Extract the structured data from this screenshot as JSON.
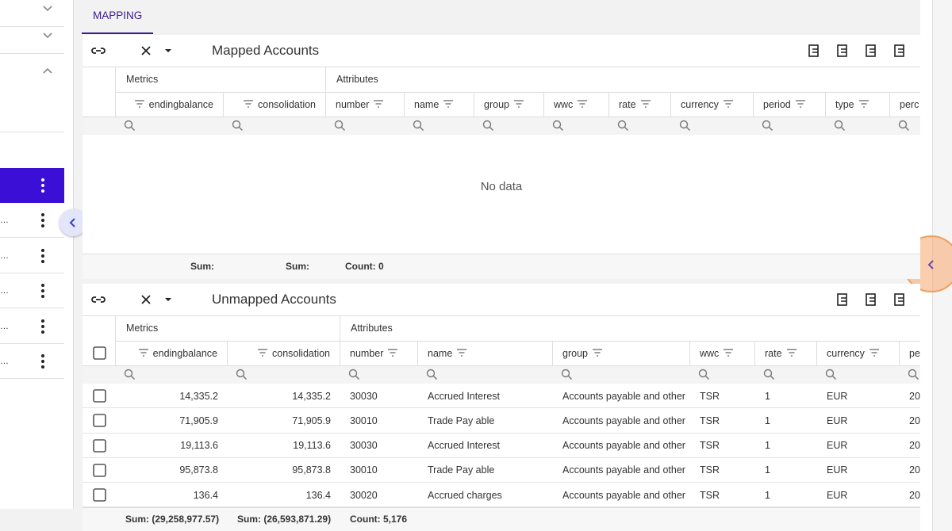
{
  "tab": "MAPPING",
  "sidebar": {
    "items": [
      "…",
      "…",
      "…",
      "…",
      "…"
    ]
  },
  "mapped": {
    "title": "Mapped Accounts",
    "groups": [
      "Metrics",
      "Attributes"
    ],
    "columns": [
      "endingbalance",
      "consolidation",
      "number",
      "name",
      "group",
      "wwc",
      "rate",
      "currency",
      "period",
      "type",
      "perc"
    ],
    "empty": "No data",
    "footer": [
      "Sum:",
      "Sum:",
      "Count: 0"
    ]
  },
  "unmapped": {
    "title": "Unmapped Accounts",
    "groups": [
      "Metrics",
      "Attributes"
    ],
    "columns": [
      "endingbalance",
      "consolidation",
      "number",
      "name",
      "group",
      "wwc",
      "rate",
      "currency",
      "pe"
    ],
    "rows": [
      [
        "14,335.2",
        "14,335.2",
        "30030",
        "Accrued Interest",
        "Accounts payable and other",
        "TSR",
        "1",
        "EUR",
        "20"
      ],
      [
        "71,905.9",
        "71,905.9",
        "30010",
        "Trade Pay able",
        "Accounts payable and other",
        "TSR",
        "1",
        "EUR",
        "20"
      ],
      [
        "19,113.6",
        "19,113.6",
        "30030",
        "Accrued Interest",
        "Accounts payable and other",
        "TSR",
        "1",
        "EUR",
        "20"
      ],
      [
        "95,873.8",
        "95,873.8",
        "30010",
        "Trade Pay able",
        "Accounts payable and other",
        "TSR",
        "1",
        "EUR",
        "20"
      ],
      [
        "136.4",
        "136.4",
        "30020",
        "Accrued charges",
        "Accounts payable and other",
        "TSR",
        "1",
        "EUR",
        "20"
      ]
    ],
    "footer": [
      "Sum: (29,258,977.57)",
      "Sum: (26,593,871.29)",
      "Count: 5,176"
    ]
  }
}
